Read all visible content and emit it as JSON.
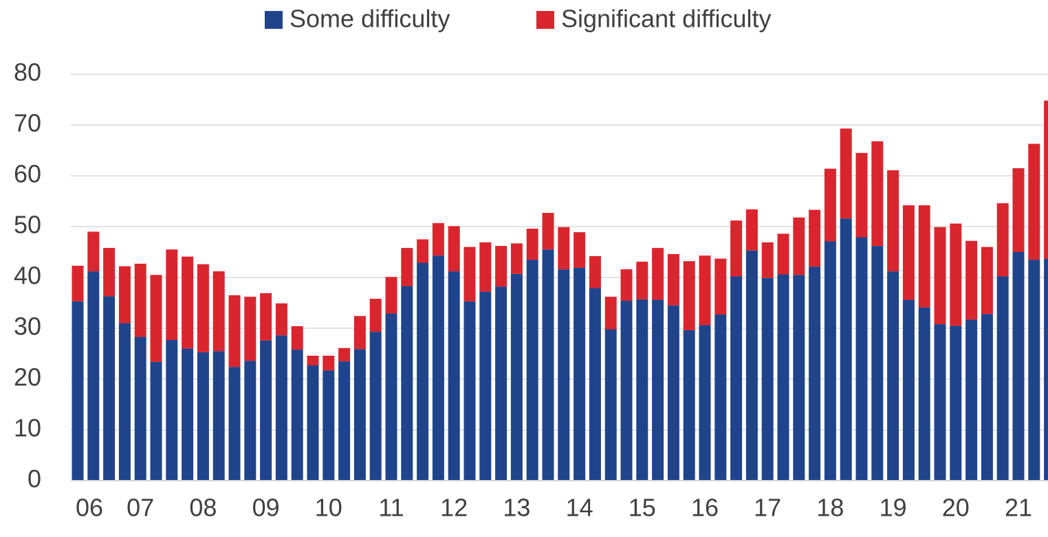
{
  "chart_data": {
    "type": "stacked_bar",
    "categories": [
      "06",
      null,
      null,
      null,
      "07",
      null,
      null,
      null,
      "08",
      null,
      null,
      null,
      "09",
      null,
      null,
      null,
      "10",
      null,
      null,
      null,
      "11",
      null,
      null,
      null,
      "12",
      null,
      null,
      null,
      "13",
      null,
      null,
      null,
      "14",
      null,
      null,
      null,
      "15",
      null,
      null,
      null,
      "16",
      null,
      null,
      null,
      "17",
      null,
      null,
      null,
      "18",
      null,
      null,
      null,
      "19",
      null,
      null,
      null,
      "20",
      null,
      null,
      null,
      "21",
      null,
      null
    ],
    "series": [
      {
        "name": "Some difficulty",
        "color": "#1f448c",
        "values": [
          35.3,
          41.2,
          36.3,
          31.0,
          28.3,
          23.4,
          27.7,
          26.0,
          25.3,
          25.5,
          22.4,
          23.6,
          27.6,
          28.6,
          25.8,
          22.7,
          21.7,
          23.5,
          25.9,
          29.3,
          32.9,
          38.3,
          42.9,
          44.3,
          41.2,
          35.3,
          37.2,
          38.2,
          40.7,
          43.5,
          45.5,
          41.6,
          41.9,
          37.9,
          29.8,
          35.4,
          35.7,
          35.6,
          34.5,
          29.6,
          30.6,
          32.7,
          40.2,
          45.3,
          39.9,
          40.6,
          40.5,
          42.1,
          47.1,
          51.6,
          47.9,
          46.2,
          41.2,
          35.6,
          34.1,
          30.8,
          30.5,
          31.7,
          32.8,
          40.2,
          45.0,
          43.5,
          43.7
        ]
      },
      {
        "name": "Significant difficulty",
        "color": "#d9262e",
        "values": [
          7.0,
          7.8,
          9.5,
          11.2,
          14.4,
          17.1,
          17.8,
          18.1,
          17.3,
          15.7,
          14.1,
          12.6,
          9.3,
          6.3,
          4.6,
          1.9,
          2.9,
          2.6,
          6.5,
          6.5,
          7.2,
          7.5,
          4.6,
          6.4,
          8.9,
          10.7,
          9.7,
          8.0,
          6.0,
          6.1,
          7.2,
          8.3,
          7.0,
          6.3,
          6.4,
          6.2,
          7.4,
          10.2,
          10.1,
          13.6,
          13.7,
          11.0,
          11.0,
          8.1,
          7.0,
          8.0,
          11.3,
          11.2,
          14.3,
          17.7,
          16.6,
          20.6,
          19.9,
          18.6,
          20.1,
          19.1,
          20.1,
          15.5,
          13.2,
          14.4,
          16.5,
          22.8,
          31.1
        ]
      }
    ],
    "ylim": [
      0,
      80
    ],
    "yticks": [
      0,
      10,
      20,
      30,
      40,
      50,
      60,
      70,
      80
    ],
    "grid": true,
    "legend": "top"
  }
}
